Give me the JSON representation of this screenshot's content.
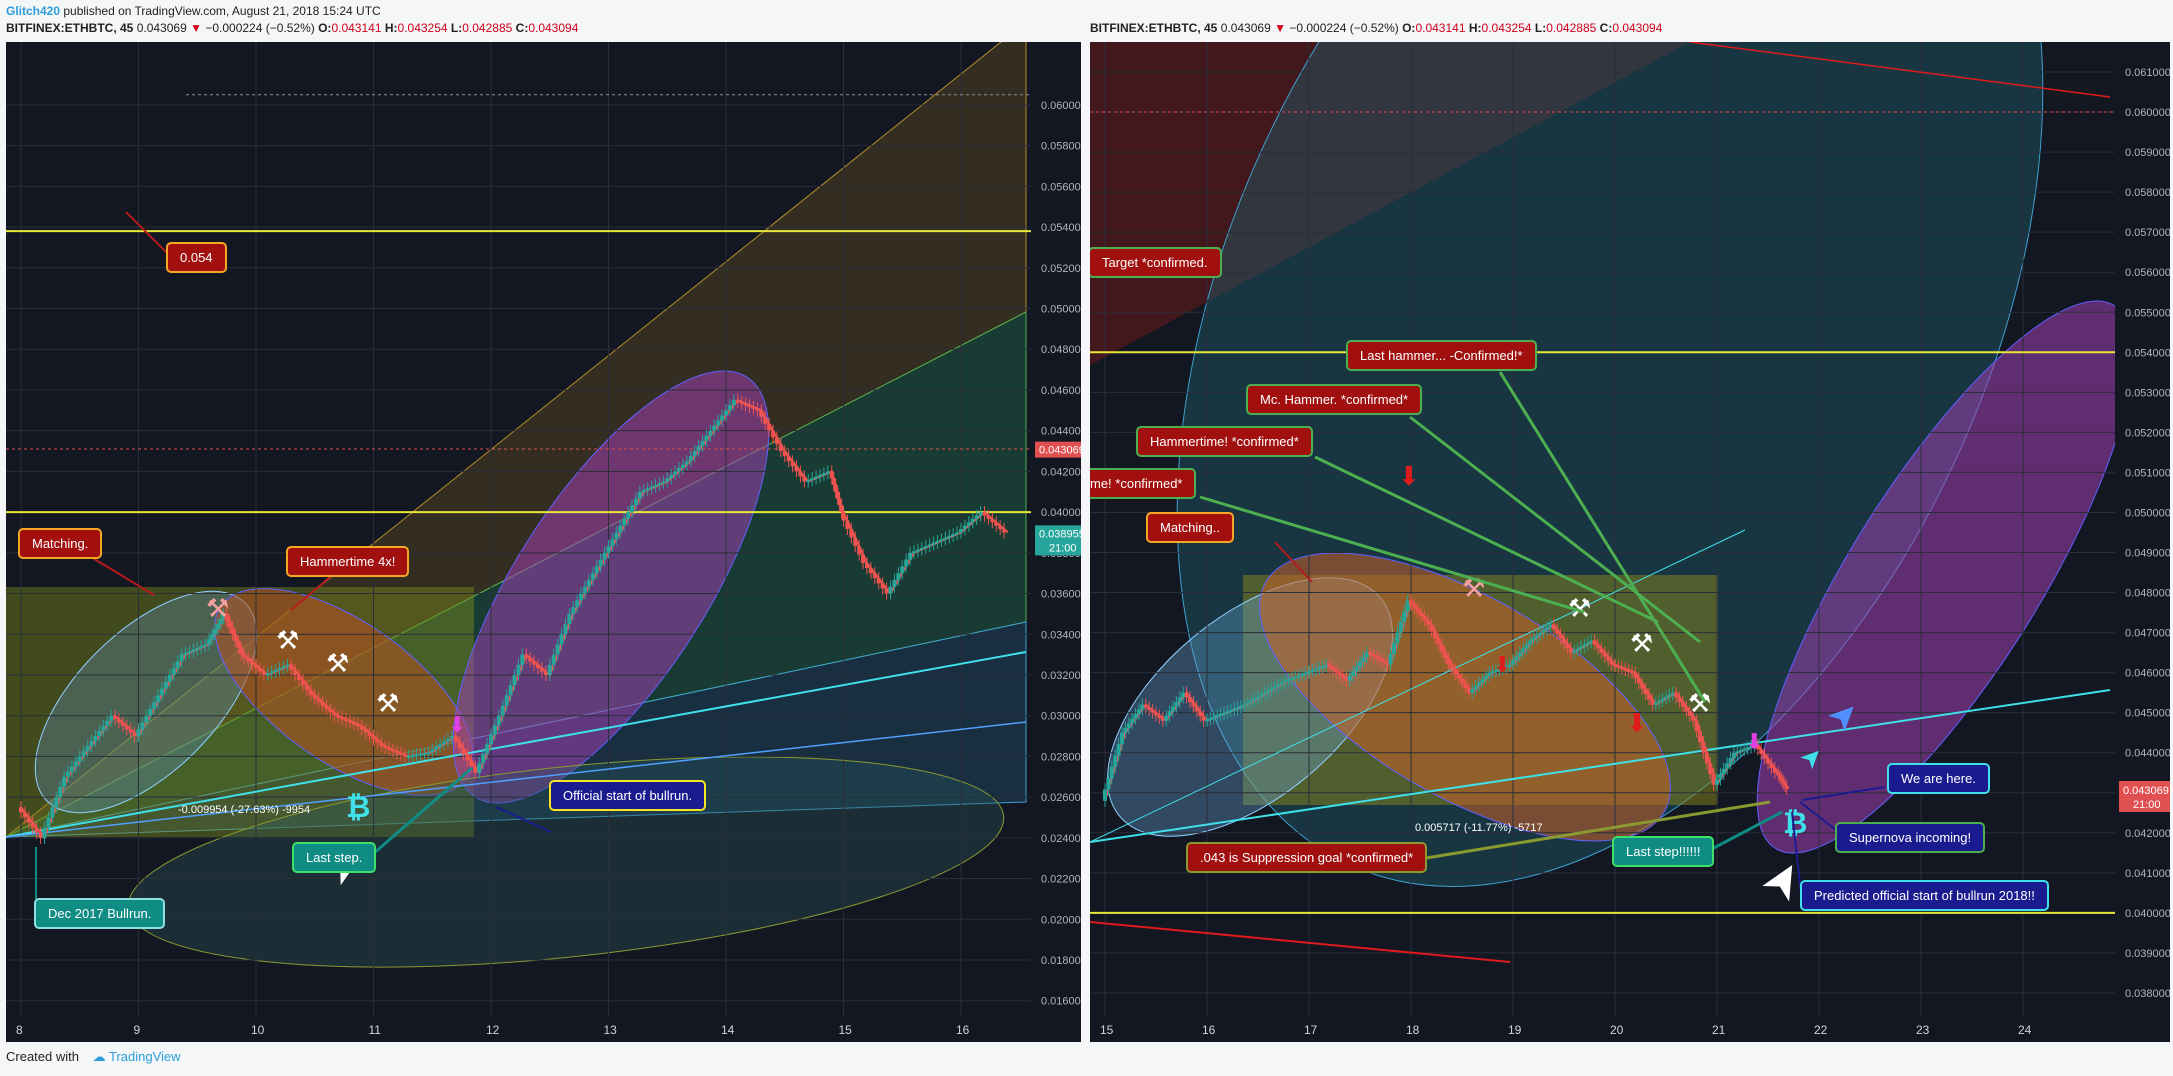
{
  "header": {
    "author": "Glitch420",
    "published": " published on TradingView.com, August 21, 2018 15:24 UTC"
  },
  "panels": [
    {
      "symbol": "BITFINEX:ETHBTC, 45",
      "price": "0.043069",
      "change": "−0.000224 (−0.52%)",
      "O": "0.043141",
      "H": "0.043254",
      "L": "0.042885",
      "C": "0.043094"
    },
    {
      "symbol": "BITFINEX:ETHBTC, 45",
      "price": "0.043069",
      "change": "−0.000224 (−0.52%)",
      "O": "0.043141",
      "H": "0.043254",
      "L": "0.042885",
      "C": "0.043094"
    }
  ],
  "colors": {
    "background": "#131722",
    "up": "#26a69a",
    "down": "#ef5350",
    "yellow_line": "#e8e83a",
    "cyan_line": "#3fe0ea",
    "callout_red": "#a10f0f",
    "callout_teal": "#0f8c84",
    "callout_blue": "#1a1b8f",
    "callout_orange_border": "#f5a623"
  },
  "chart_data": [
    {
      "type": "line",
      "title": "",
      "y_axis": {
        "side": "right",
        "ticks": [
          "0.060000",
          "0.058000",
          "0.056000",
          "0.054000",
          "0.052000",
          "0.050000",
          "0.048000",
          "0.046000",
          "0.044000",
          "0.042000",
          "0.040000",
          "0.038000",
          "0.036000",
          "0.034000",
          "0.032000",
          "0.030000",
          "0.028000",
          "0.026000",
          "0.024000",
          "0.022000",
          "0.020000",
          "0.018000",
          "0.016000"
        ],
        "ylim": [
          0.0152,
          0.0626
        ]
      },
      "x_axis": {
        "ticks": [
          "8",
          "9",
          "10",
          "11",
          "12",
          "13",
          "14",
          "15",
          "16"
        ]
      },
      "price_labels": {
        "last": "0.043069",
        "current": "0.038955",
        "timer": "21:00"
      },
      "series": [
        {
          "x": [
            8.0,
            8.2,
            8.4,
            8.6,
            8.8,
            9.0,
            9.2,
            9.4,
            9.6,
            9.75,
            9.9,
            10.1,
            10.3,
            10.5,
            10.7,
            10.9,
            11.1,
            11.3,
            11.5,
            11.7,
            11.9,
            12.1,
            12.3,
            12.5,
            12.7,
            12.9,
            13.1,
            13.3,
            13.5,
            13.7,
            13.9,
            14.1,
            14.3,
            14.5,
            14.7,
            14.9,
            15.0,
            15.2,
            15.4,
            15.6,
            15.8,
            16.0,
            16.2,
            16.4
          ],
          "values": [
            0.0255,
            0.024,
            0.027,
            0.0285,
            0.03,
            0.029,
            0.031,
            0.033,
            0.0335,
            0.035,
            0.033,
            0.032,
            0.0325,
            0.031,
            0.03,
            0.0295,
            0.0285,
            0.028,
            0.0282,
            0.029,
            0.0272,
            0.03,
            0.033,
            0.032,
            0.035,
            0.037,
            0.039,
            0.041,
            0.0415,
            0.0425,
            0.044,
            0.0455,
            0.045,
            0.043,
            0.0415,
            0.042,
            0.04,
            0.0375,
            0.036,
            0.038,
            0.0385,
            0.039,
            0.04,
            0.039
          ]
        }
      ],
      "horizontal_levels": [
        0.0538,
        0.04,
        0.0431,
        0.0605
      ]
    },
    {
      "type": "line",
      "title": "",
      "y_axis": {
        "side": "right",
        "ticks": [
          "0.061000",
          "0.060000",
          "0.059000",
          "0.058000",
          "0.057000",
          "0.056000",
          "0.055000",
          "0.054000",
          "0.053000",
          "0.052000",
          "0.051000",
          "0.050000",
          "0.049000",
          "0.048000",
          "0.047000",
          "0.046000",
          "0.045000",
          "0.044000",
          "0.043000",
          "0.042000",
          "0.041000",
          "0.040000",
          "0.039000",
          "0.038000"
        ],
        "ylim": [
          0.0374,
          0.0615
        ]
      },
      "x_axis": {
        "ticks": [
          "15",
          "16",
          "17",
          "18",
          "19",
          "20",
          "21",
          "22",
          "23",
          "24"
        ]
      },
      "price_labels": {
        "last": "0.043094",
        "timer": "21:00",
        "current": "0.043069"
      },
      "series": [
        {
          "x": [
            15.0,
            15.2,
            15.4,
            15.6,
            15.8,
            16.0,
            16.2,
            16.4,
            16.6,
            16.8,
            17.0,
            17.2,
            17.4,
            17.6,
            17.8,
            18.0,
            18.2,
            18.4,
            18.6,
            18.8,
            19.0,
            19.2,
            19.4,
            19.6,
            19.8,
            20.0,
            20.2,
            20.4,
            20.6,
            20.8,
            21.0,
            21.2,
            21.4,
            21.6,
            21.7
          ],
          "values": [
            0.0428,
            0.0445,
            0.0452,
            0.0448,
            0.0455,
            0.0448,
            0.045,
            0.0452,
            0.0455,
            0.0458,
            0.046,
            0.0462,
            0.0458,
            0.0465,
            0.0462,
            0.0478,
            0.0472,
            0.0462,
            0.0455,
            0.046,
            0.0462,
            0.0468,
            0.0472,
            0.0465,
            0.0468,
            0.0462,
            0.046,
            0.0452,
            0.0455,
            0.0448,
            0.0432,
            0.044,
            0.0442,
            0.0435,
            0.0431
          ]
        }
      ],
      "horizontal_levels": [
        0.054,
        0.04,
        0.06
      ]
    }
  ],
  "annotations": {
    "left": [
      {
        "text": "0.054",
        "style": "red"
      },
      {
        "text": "Matching.",
        "style": "red"
      },
      {
        "text": "Hammertime 4x!",
        "style": "red"
      },
      {
        "text": "Official start of bullrun.",
        "style": "blue"
      },
      {
        "text": "Last step.",
        "style": "teal"
      },
      {
        "text": "Dec 2017 Bullrun.",
        "style": "teal"
      },
      {
        "text": "-0.009954 (-27.63%) -9954",
        "style": "plain"
      }
    ],
    "right": [
      {
        "text": "Target *confirmed.",
        "style": "red"
      },
      {
        "text": "Last hammer... -Confirmed!*",
        "style": "red"
      },
      {
        "text": "Mc. Hammer. *confirmed*",
        "style": "red"
      },
      {
        "text": "Hammertime! *confirmed*",
        "style": "red"
      },
      {
        "text": "me! *confirmed*",
        "style": "red"
      },
      {
        "text": "Matching..",
        "style": "red"
      },
      {
        "text": "We are here.",
        "style": "blue"
      },
      {
        "text": "Supernova incoming!",
        "style": "blue"
      },
      {
        "text": "Last step!!!!!!",
        "style": "teal"
      },
      {
        "text": ".043 is Suppression goal *confirmed*",
        "style": "red"
      },
      {
        "text": "Predicted official start of bullrun 2018!!",
        "style": "blue"
      },
      {
        "text": "0.005717 (-11.77%) -5717",
        "style": "plain"
      }
    ]
  },
  "footer": {
    "created": "Created with",
    "brand": "TradingView"
  }
}
